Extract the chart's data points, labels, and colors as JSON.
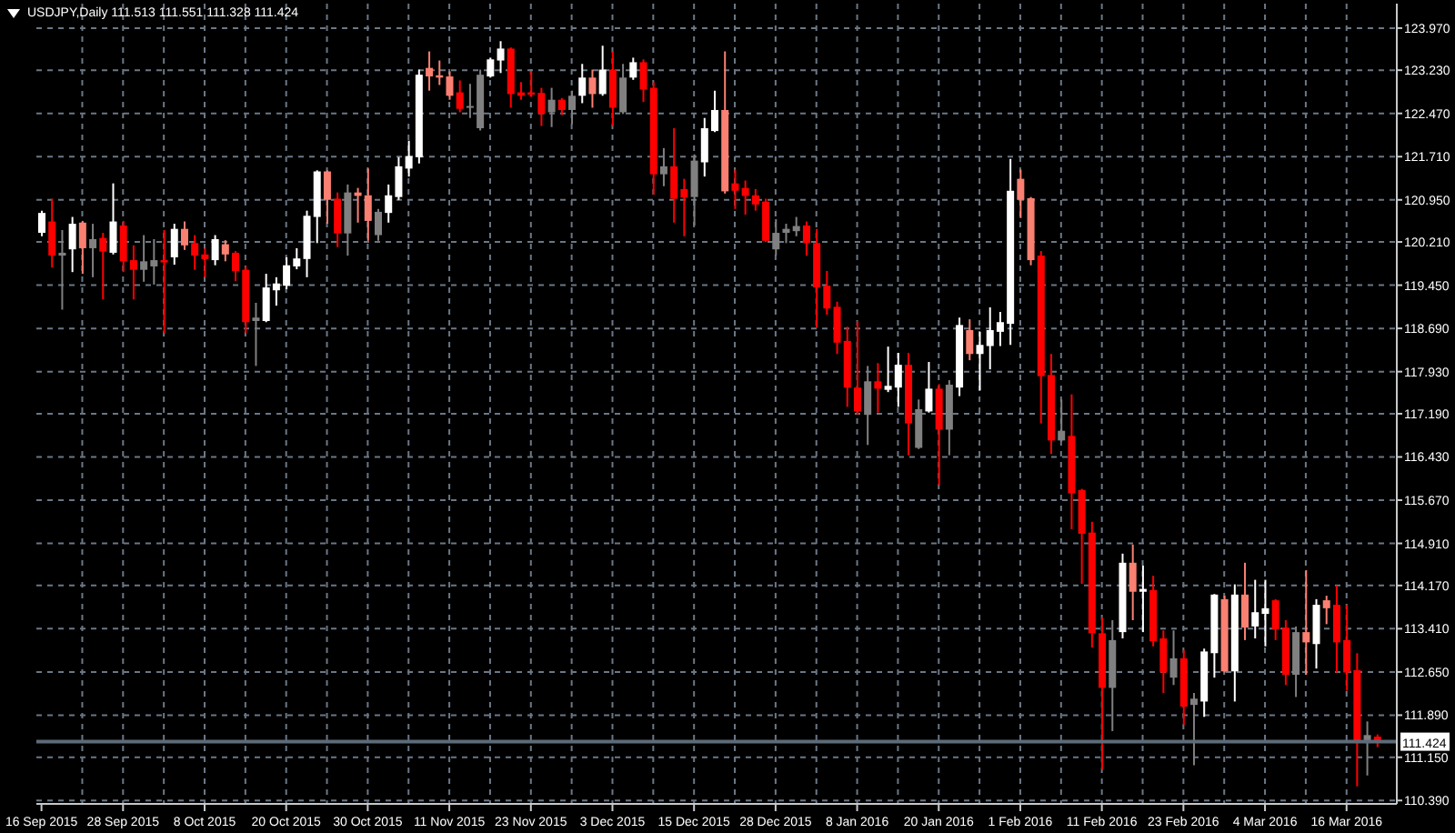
{
  "chart_data": {
    "type": "candlestick",
    "title": "USDJPY,Daily 111.513 111.551 111.328 111.424",
    "categories": [
      "16 Sep 2015",
      null,
      null,
      null,
      null,
      null,
      null,
      null,
      "28 Sep 2015",
      null,
      null,
      null,
      null,
      null,
      null,
      null,
      "8 Oct 2015",
      null,
      null,
      null,
      null,
      null,
      null,
      null,
      "20 Oct 2015",
      null,
      null,
      null,
      null,
      null,
      null,
      null,
      "30 Oct 2015",
      null,
      null,
      null,
      null,
      null,
      null,
      null,
      "11 Nov 2015",
      null,
      null,
      null,
      null,
      null,
      null,
      null,
      "23 Nov 2015",
      null,
      null,
      null,
      null,
      null,
      null,
      null,
      "3 Dec 2015",
      null,
      null,
      null,
      null,
      null,
      null,
      null,
      "15 Dec 2015",
      null,
      null,
      null,
      null,
      null,
      null,
      null,
      "28 Dec 2015",
      null,
      null,
      null,
      null,
      null,
      null,
      null,
      "8 Jan 2016",
      null,
      null,
      null,
      null,
      null,
      null,
      null,
      "20 Jan 2016",
      null,
      null,
      null,
      null,
      null,
      null,
      null,
      "1 Feb 2016",
      null,
      null,
      null,
      null,
      null,
      null,
      null,
      "11 Feb 2016",
      null,
      null,
      null,
      null,
      null,
      null,
      null,
      "23 Feb 2016",
      null,
      null,
      null,
      null,
      null,
      null,
      null,
      "4 Mar 2016",
      null,
      null,
      null,
      null,
      null,
      null,
      null,
      "16 Mar 2016",
      null,
      null,
      null
    ],
    "ohlc": [
      [
        120.37,
        120.76,
        120.31,
        120.72
      ],
      [
        120.57,
        120.97,
        119.76,
        119.97
      ],
      [
        119.97,
        120.42,
        119.02,
        120.02
      ],
      [
        120.08,
        120.65,
        119.68,
        120.53
      ],
      [
        120.55,
        120.58,
        119.65,
        120.1
      ],
      [
        120.1,
        120.53,
        119.59,
        120.26
      ],
      [
        120.28,
        120.37,
        119.2,
        120.04
      ],
      [
        120.02,
        121.24,
        119.99,
        120.57
      ],
      [
        120.5,
        120.58,
        119.68,
        119.87
      ],
      [
        119.89,
        120.15,
        119.2,
        119.72
      ],
      [
        119.72,
        120.33,
        119.51,
        119.87
      ],
      [
        119.78,
        120.26,
        119.46,
        119.89
      ],
      [
        119.89,
        120.42,
        118.61,
        119.85
      ],
      [
        119.94,
        120.53,
        119.81,
        120.44
      ],
      [
        120.44,
        120.57,
        120.07,
        120.15
      ],
      [
        120.19,
        120.33,
        119.72,
        119.97
      ],
      [
        119.99,
        120.1,
        119.59,
        119.91
      ],
      [
        119.89,
        120.33,
        119.8,
        120.26
      ],
      [
        120.17,
        120.24,
        119.87,
        119.99
      ],
      [
        120.02,
        120.05,
        119.52,
        119.7
      ],
      [
        119.72,
        119.78,
        118.61,
        118.8
      ],
      [
        118.82,
        119.14,
        118.03,
        118.88
      ],
      [
        118.82,
        119.65,
        118.8,
        119.41
      ],
      [
        119.36,
        119.59,
        119.09,
        119.48
      ],
      [
        119.44,
        119.94,
        119.38,
        119.8
      ],
      [
        119.78,
        120.1,
        119.73,
        119.92
      ],
      [
        119.91,
        120.76,
        119.59,
        120.67
      ],
      [
        120.65,
        121.47,
        120.19,
        121.45
      ],
      [
        121.45,
        121.47,
        120.53,
        120.95
      ],
      [
        120.97,
        121.08,
        120.12,
        120.36
      ],
      [
        120.36,
        121.22,
        119.97,
        121.08
      ],
      [
        121.08,
        121.16,
        120.55,
        121.02
      ],
      [
        121.03,
        121.5,
        120.23,
        120.58
      ],
      [
        120.33,
        120.79,
        120.23,
        120.74
      ],
      [
        120.72,
        121.22,
        120.55,
        121.03
      ],
      [
        121.0,
        121.7,
        120.95,
        121.54
      ],
      [
        121.5,
        121.99,
        121.36,
        121.72
      ],
      [
        121.7,
        123.24,
        121.59,
        123.15
      ],
      [
        123.27,
        123.56,
        122.87,
        123.12
      ],
      [
        123.14,
        123.4,
        122.97,
        123.1
      ],
      [
        123.12,
        123.21,
        122.71,
        122.78
      ],
      [
        122.84,
        123.05,
        122.49,
        122.55
      ],
      [
        122.57,
        122.99,
        122.39,
        122.6
      ],
      [
        122.21,
        123.24,
        122.17,
        123.15
      ],
      [
        123.12,
        123.45,
        123.1,
        123.42
      ],
      [
        123.4,
        123.74,
        123.18,
        123.61
      ],
      [
        123.61,
        123.63,
        122.57,
        122.81
      ],
      [
        122.84,
        123.02,
        122.71,
        122.78
      ],
      [
        122.84,
        123.21,
        122.76,
        122.8
      ],
      [
        122.83,
        122.92,
        122.25,
        122.46
      ],
      [
        122.49,
        122.92,
        122.23,
        122.71
      ],
      [
        122.71,
        122.74,
        122.44,
        122.53
      ],
      [
        122.53,
        122.87,
        122.28,
        122.78
      ],
      [
        122.78,
        123.34,
        122.65,
        123.1
      ],
      [
        123.1,
        123.24,
        122.57,
        122.81
      ],
      [
        122.81,
        123.66,
        122.78,
        123.24
      ],
      [
        123.24,
        123.56,
        122.25,
        122.57
      ],
      [
        122.49,
        123.34,
        122.46,
        123.1
      ],
      [
        123.1,
        123.45,
        123.06,
        123.37
      ],
      [
        123.37,
        123.42,
        122.67,
        122.89
      ],
      [
        122.92,
        123.02,
        121.04,
        121.4
      ],
      [
        121.4,
        121.86,
        121.19,
        121.54
      ],
      [
        121.54,
        122.21,
        120.55,
        120.97
      ],
      [
        121.14,
        121.32,
        120.31,
        120.99
      ],
      [
        121.0,
        121.75,
        120.5,
        121.64
      ],
      [
        121.61,
        122.39,
        121.36,
        122.21
      ],
      [
        122.16,
        122.87,
        122.14,
        122.53
      ],
      [
        122.53,
        123.56,
        121.06,
        121.1
      ],
      [
        121.24,
        121.48,
        120.79,
        121.11
      ],
      [
        121.16,
        121.29,
        120.69,
        121.02
      ],
      [
        121.03,
        121.14,
        120.76,
        120.87
      ],
      [
        120.92,
        120.97,
        120.21,
        120.23
      ],
      [
        120.08,
        120.61,
        119.97,
        120.37
      ],
      [
        120.37,
        120.53,
        120.19,
        120.44
      ],
      [
        120.4,
        120.65,
        120.31,
        120.49
      ],
      [
        120.5,
        120.57,
        119.97,
        120.19
      ],
      [
        120.19,
        120.44,
        118.7,
        119.41
      ],
      [
        119.44,
        119.7,
        118.93,
        119.04
      ],
      [
        119.07,
        119.16,
        118.24,
        118.44
      ],
      [
        118.47,
        118.72,
        117.31,
        117.65
      ],
      [
        117.65,
        118.82,
        117.17,
        117.23
      ],
      [
        117.17,
        118.03,
        116.64,
        117.76
      ],
      [
        117.76,
        118.08,
        117.21,
        117.63
      ],
      [
        117.61,
        118.37,
        117.57,
        117.68
      ],
      [
        117.65,
        118.26,
        117.31,
        118.05
      ],
      [
        118.05,
        118.26,
        116.46,
        117.02
      ],
      [
        116.59,
        117.44,
        116.57,
        117.27
      ],
      [
        117.23,
        118.1,
        117.21,
        117.63
      ],
      [
        117.63,
        117.71,
        115.93,
        116.91
      ],
      [
        116.91,
        117.78,
        116.46,
        117.7
      ],
      [
        117.65,
        118.88,
        117.5,
        118.75
      ],
      [
        118.66,
        118.85,
        118.13,
        118.24
      ],
      [
        118.24,
        118.63,
        117.6,
        118.4
      ],
      [
        118.38,
        119.06,
        117.97,
        118.66
      ],
      [
        118.63,
        118.98,
        118.38,
        118.8
      ],
      [
        118.77,
        121.67,
        118.4,
        121.11
      ],
      [
        121.32,
        121.48,
        120.63,
        120.95
      ],
      [
        120.98,
        121.0,
        119.8,
        119.89
      ],
      [
        119.97,
        120.05,
        117.02,
        117.85
      ],
      [
        117.87,
        118.24,
        116.48,
        116.72
      ],
      [
        116.72,
        117.44,
        116.7,
        116.89
      ],
      [
        116.8,
        117.53,
        115.16,
        115.79
      ],
      [
        115.85,
        115.87,
        114.2,
        115.08
      ],
      [
        115.1,
        115.29,
        113.08,
        113.33
      ],
      [
        113.33,
        113.61,
        110.93,
        112.37
      ],
      [
        112.37,
        113.56,
        111.61,
        113.21
      ],
      [
        113.35,
        114.73,
        113.24,
        114.57
      ],
      [
        114.57,
        114.89,
        113.56,
        114.06
      ],
      [
        114.06,
        114.52,
        113.35,
        114.11
      ],
      [
        114.09,
        114.34,
        113.1,
        113.19
      ],
      [
        113.24,
        113.38,
        112.28,
        112.64
      ],
      [
        112.55,
        113.38,
        112.42,
        112.89
      ],
      [
        112.89,
        113.03,
        111.72,
        112.04
      ],
      [
        112.07,
        112.28,
        111.01,
        112.18
      ],
      [
        112.13,
        113.06,
        111.86,
        113.01
      ],
      [
        112.98,
        114.02,
        112.55,
        114.01
      ],
      [
        113.93,
        113.99,
        112.64,
        112.66
      ],
      [
        112.66,
        114.19,
        112.13,
        114.01
      ],
      [
        114.01,
        114.57,
        113.21,
        113.43
      ],
      [
        113.45,
        114.27,
        113.24,
        113.7
      ],
      [
        113.67,
        114.27,
        113.1,
        113.77
      ],
      [
        113.91,
        113.93,
        113.21,
        113.4
      ],
      [
        113.43,
        113.56,
        112.42,
        112.6
      ],
      [
        112.6,
        113.45,
        112.21,
        113.35
      ],
      [
        113.35,
        114.44,
        112.6,
        113.17
      ],
      [
        113.14,
        113.93,
        112.71,
        113.83
      ],
      [
        113.91,
        113.99,
        113.49,
        113.77
      ],
      [
        113.83,
        114.17,
        112.64,
        113.17
      ],
      [
        113.21,
        113.83,
        112.32,
        112.64
      ],
      [
        112.68,
        112.98,
        110.64,
        111.4
      ],
      [
        111.4,
        111.78,
        110.83,
        111.54
      ],
      [
        111.513,
        111.551,
        111.328,
        111.424
      ]
    ],
    "colors": [
      "#ffffff",
      "#ff0000",
      "#808080",
      "#ffffff",
      "#fa8072",
      "#808080",
      "#ff0000",
      "#ffffff",
      "#ff0000",
      "#ff0000",
      "#808080",
      "#808080",
      "#ff0000",
      "#ffffff",
      "#fa8072",
      "#ff0000",
      "#ff0000",
      "#ffffff",
      "#fa8072",
      "#ff0000",
      "#ff0000",
      "#808080",
      "#ffffff",
      "#ffffff",
      "#ffffff",
      "#ffffff",
      "#ffffff",
      "#ffffff",
      "#fa8072",
      "#ff0000",
      "#808080",
      "#fa8072",
      "#fa8072",
      "#808080",
      "#ffffff",
      "#ffffff",
      "#ffffff",
      "#ffffff",
      "#fa8072",
      "#fa8072",
      "#fa8072",
      "#ff0000",
      "#808080",
      "#808080",
      "#ffffff",
      "#ffffff",
      "#ff0000",
      "#ff0000",
      "#ff0000",
      "#ff0000",
      "#808080",
      "#ff0000",
      "#808080",
      "#ffffff",
      "#fa8072",
      "#ffffff",
      "#ff0000",
      "#808080",
      "#ffffff",
      "#ff0000",
      "#ff0000",
      "#808080",
      "#ff0000",
      "#ff0000",
      "#808080",
      "#ffffff",
      "#ffffff",
      "#fa8072",
      "#ff0000",
      "#ff0000",
      "#ff0000",
      "#ff0000",
      "#808080",
      "#808080",
      "#808080",
      "#ff0000",
      "#ff0000",
      "#ff0000",
      "#ff0000",
      "#ff0000",
      "#ff0000",
      "#808080",
      "#ff0000",
      "#ffffff",
      "#ffffff",
      "#ff0000",
      "#808080",
      "#ffffff",
      "#ff0000",
      "#808080",
      "#ffffff",
      "#fa8072",
      "#ffffff",
      "#ffffff",
      "#ffffff",
      "#ffffff",
      "#fa8072",
      "#fa8072",
      "#ff0000",
      "#ff0000",
      "#808080",
      "#ff0000",
      "#ff0000",
      "#ff0000",
      "#ff0000",
      "#808080",
      "#ffffff",
      "#fa8072",
      "#ffffff",
      "#ff0000",
      "#ff0000",
      "#808080",
      "#ff0000",
      "#808080",
      "#ffffff",
      "#ffffff",
      "#fa8072",
      "#ffffff",
      "#fa8072",
      "#ffffff",
      "#ffffff",
      "#ff0000",
      "#ff0000",
      "#808080",
      "#fa8072",
      "#ffffff",
      "#fa8072",
      "#ff0000",
      "#ff0000",
      "#ff0000",
      "#808080",
      "#ff0000"
    ],
    "ylim": [
      110.33,
      124.4
    ],
    "yticks": [
      {
        "value": 110.39,
        "label": "110.390"
      },
      {
        "value": 111.15,
        "label": "111.150"
      },
      {
        "value": 111.89,
        "label": "111.890"
      },
      {
        "value": 112.65,
        "label": "112.650"
      },
      {
        "value": 113.41,
        "label": "113.410"
      },
      {
        "value": 114.17,
        "label": "114.170"
      },
      {
        "value": 114.91,
        "label": "114.910"
      },
      {
        "value": 115.67,
        "label": "115.670"
      },
      {
        "value": 116.43,
        "label": "116.430"
      },
      {
        "value": 117.19,
        "label": "117.190"
      },
      {
        "value": 117.93,
        "label": "117.930"
      },
      {
        "value": 118.69,
        "label": "118.690"
      },
      {
        "value": 119.45,
        "label": "119.450"
      },
      {
        "value": 120.21,
        "label": "120.210"
      },
      {
        "value": 120.95,
        "label": "120.950"
      },
      {
        "value": 121.71,
        "label": "121.710"
      },
      {
        "value": 122.47,
        "label": "122.470"
      },
      {
        "value": 123.23,
        "label": "123.230"
      },
      {
        "value": 123.97,
        "label": "123.970"
      }
    ],
    "grid": true,
    "ref_lines": [
      {
        "axis": "y",
        "value": 111.424,
        "label": "111.424",
        "color": "#5d6b78"
      }
    ]
  }
}
